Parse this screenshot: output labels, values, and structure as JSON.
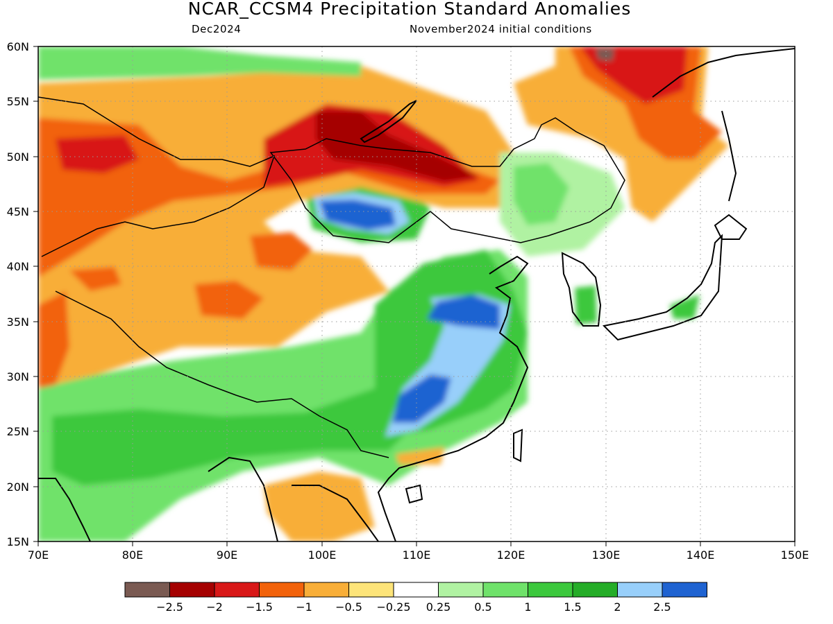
{
  "header": {
    "title": "NCAR_CCSM4 Precipitation Standard Anomalies",
    "left_subtitle": "Dec2024",
    "right_subtitle": "November2024 initial conditions"
  },
  "axes": {
    "longitude_ticks": [
      "70E",
      "80E",
      "90E",
      "100E",
      "110E",
      "120E",
      "130E",
      "140E",
      "150E"
    ],
    "latitude_ticks": [
      "60N",
      "55N",
      "50N",
      "45N",
      "40N",
      "35N",
      "30N",
      "25N",
      "20N",
      "15N"
    ],
    "lon_range": [
      70,
      150
    ],
    "lat_range": [
      15,
      60
    ],
    "grid": "dotted"
  },
  "colorbar": {
    "colors": [
      "#7a5a52",
      "#a50000",
      "#d81818",
      "#f2620a",
      "#f8ae38",
      "#fde479",
      "#ffffff",
      "#b0f2a2",
      "#6fe26a",
      "#3cc83d",
      "#25ad28",
      "#98cffa",
      "#1f63d1"
    ],
    "labels": [
      "−2.5",
      "−2",
      "−1.5",
      "−1",
      "−0.5",
      "−0.25",
      "0.25",
      "0.5",
      "1",
      "1.5",
      "2",
      "2.5"
    ]
  },
  "anomaly_regions": [
    {
      "name": "central-asia-dry",
      "level": "-1",
      "color": "#f2620a"
    },
    {
      "name": "mongolia-siberia-dry",
      "level": "-2",
      "color": "#a50000"
    },
    {
      "name": "far-east-russia-dry",
      "level": "-2",
      "color": "#d81818"
    },
    {
      "name": "western-mongolia-wet",
      "level": "2.5",
      "color": "#1f63d1"
    },
    {
      "name": "south-china-wet",
      "level": "2.5",
      "color": "#1f63d1"
    },
    {
      "name": "north-china-plain-wet",
      "level": "2.5",
      "color": "#1f63d1"
    },
    {
      "name": "himalaya-wet",
      "level": "1.5",
      "color": "#3cc83d"
    },
    {
      "name": "indochina-dry",
      "level": "-0.5",
      "color": "#f8ae38"
    }
  ]
}
